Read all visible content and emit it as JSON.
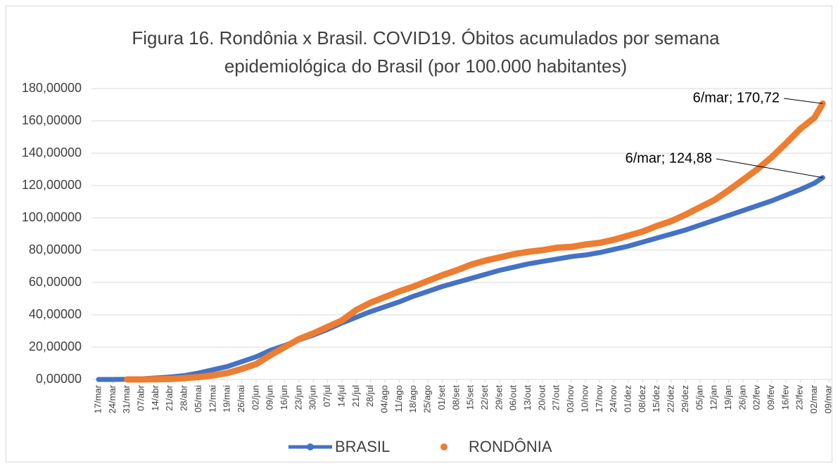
{
  "chart_data": {
    "type": "line",
    "title": "Figura 16. Rondônia x Brasil. COVID19. Óbitos acumulados por semana epidemiológica do Brasil (por 100.000 habitantes)",
    "x": [
      0,
      7,
      14,
      21,
      28,
      35,
      42,
      49,
      56,
      63,
      70,
      77,
      84,
      91,
      98,
      105,
      112,
      119,
      126,
      133,
      140,
      147,
      154,
      161,
      168,
      175,
      182,
      189,
      196,
      203,
      210,
      217,
      224,
      231,
      238,
      245,
      252,
      259,
      266,
      273,
      280,
      287,
      294,
      301,
      308,
      315,
      322,
      329,
      336,
      343,
      350,
      354
    ],
    "series": [
      {
        "name": "BRASIL",
        "color": "#4472c4",
        "marker": "line",
        "values": [
          0,
          0,
          0.1,
          0.4,
          0.9,
          1.5,
          2.4,
          4,
          6,
          8,
          11,
          14,
          18,
          21,
          24.5,
          27.5,
          31,
          35,
          38.5,
          42,
          45,
          48,
          51.5,
          54.5,
          57.5,
          60,
          62.5,
          65,
          67.5,
          69.5,
          71.5,
          73,
          74.5,
          76,
          77,
          78.5,
          80.5,
          82.5,
          85,
          87.5,
          90,
          92.5,
          95.5,
          98.5,
          101.5,
          104.5,
          107.5,
          110.5,
          114,
          117.5,
          121.5,
          124.88
        ]
      },
      {
        "name": "RONDÔNIA",
        "color": "#ed7d31",
        "marker": "dot",
        "values": [
          null,
          null,
          0,
          0,
          0.1,
          0.3,
          0.8,
          1.5,
          2.5,
          4,
          6.5,
          9.5,
          15,
          20,
          25,
          28.5,
          32.5,
          36.5,
          43,
          47.5,
          51,
          54.5,
          57.5,
          61,
          64.5,
          67.5,
          71,
          73.5,
          75.5,
          77.5,
          79,
          80,
          81.5,
          82,
          83.5,
          84.5,
          86.5,
          89,
          91.5,
          95,
          98,
          102,
          106.5,
          111,
          117,
          123.5,
          130,
          137.5,
          146,
          155,
          162,
          170.72
        ]
      }
    ],
    "annotations": [
      "6/mar; 124,88",
      "6/mar; 170,72"
    ],
    "xlim": [
      0,
      357
    ],
    "xticks": [
      {
        "value": 0,
        "label": "17/mar"
      },
      {
        "value": 7,
        "label": "24/mar"
      },
      {
        "value": 14,
        "label": "31/mar"
      },
      {
        "value": 21,
        "label": "07/abr"
      },
      {
        "value": 28,
        "label": "14/abr"
      },
      {
        "value": 35,
        "label": "21/abr"
      },
      {
        "value": 42,
        "label": "28/abr"
      },
      {
        "value": 49,
        "label": "05/mai"
      },
      {
        "value": 56,
        "label": "12/mai"
      },
      {
        "value": 63,
        "label": "19/mai"
      },
      {
        "value": 70,
        "label": "26/mai"
      },
      {
        "value": 77,
        "label": "02/jun"
      },
      {
        "value": 84,
        "label": "09/jun"
      },
      {
        "value": 91,
        "label": "16/jun"
      },
      {
        "value": 98,
        "label": "23/jun"
      },
      {
        "value": 105,
        "label": "30/jun"
      },
      {
        "value": 112,
        "label": "07/jul"
      },
      {
        "value": 119,
        "label": "14/jul"
      },
      {
        "value": 126,
        "label": "21/jul"
      },
      {
        "value": 133,
        "label": "28/jul"
      },
      {
        "value": 140,
        "label": "04/ago"
      },
      {
        "value": 147,
        "label": "11/ago"
      },
      {
        "value": 154,
        "label": "18/ago"
      },
      {
        "value": 161,
        "label": "25/ago"
      },
      {
        "value": 168,
        "label": "01/set"
      },
      {
        "value": 175,
        "label": "08/set"
      },
      {
        "value": 182,
        "label": "15/set"
      },
      {
        "value": 189,
        "label": "22/set"
      },
      {
        "value": 196,
        "label": "29/set"
      },
      {
        "value": 203,
        "label": "06/out"
      },
      {
        "value": 210,
        "label": "13/out"
      },
      {
        "value": 217,
        "label": "20/out"
      },
      {
        "value": 224,
        "label": "27/out"
      },
      {
        "value": 231,
        "label": "03/nov"
      },
      {
        "value": 238,
        "label": "10/nov"
      },
      {
        "value": 245,
        "label": "17/nov"
      },
      {
        "value": 252,
        "label": "24/nov"
      },
      {
        "value": 259,
        "label": "01/dez"
      },
      {
        "value": 266,
        "label": "08/dez"
      },
      {
        "value": 273,
        "label": "15/dez"
      },
      {
        "value": 280,
        "label": "22/dez"
      },
      {
        "value": 287,
        "label": "29/dez"
      },
      {
        "value": 294,
        "label": "05/jan"
      },
      {
        "value": 301,
        "label": "12/jan"
      },
      {
        "value": 308,
        "label": "19/jan"
      },
      {
        "value": 315,
        "label": "26/jan"
      },
      {
        "value": 322,
        "label": "02/fev"
      },
      {
        "value": 329,
        "label": "09/fev"
      },
      {
        "value": 336,
        "label": "16/fev"
      },
      {
        "value": 343,
        "label": "23/fev"
      },
      {
        "value": 350,
        "label": "02/mar"
      },
      {
        "value": 357,
        "label": "09/mar"
      }
    ],
    "ylim": [
      0,
      180
    ],
    "yticks": [
      {
        "value": 0,
        "label": "0,00000"
      },
      {
        "value": 20,
        "label": "20,00000"
      },
      {
        "value": 40,
        "label": "40,00000"
      },
      {
        "value": 60,
        "label": "60,00000"
      },
      {
        "value": 80,
        "label": "80,00000"
      },
      {
        "value": 100,
        "label": "100,00000"
      },
      {
        "value": 120,
        "label": "120,00000"
      },
      {
        "value": 140,
        "label": "140,00000"
      },
      {
        "value": 160,
        "label": "160,00000"
      },
      {
        "value": 180,
        "label": "180,00000"
      }
    ],
    "grid": true
  }
}
